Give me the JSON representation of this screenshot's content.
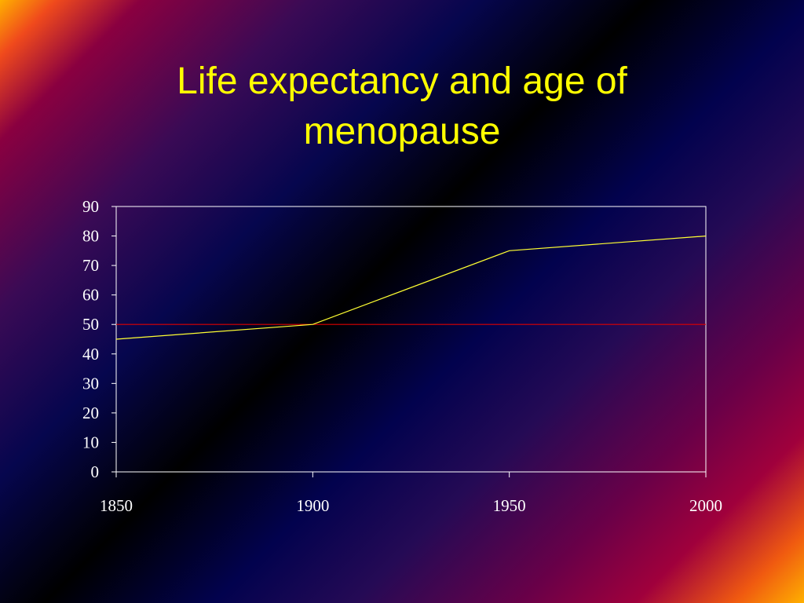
{
  "slide": {
    "title_line1": "Life expectancy and age of",
    "title_line2": "menopause"
  },
  "colors": {
    "title": "#ffff00",
    "axis": "#ffffff",
    "life_expectancy_line": "#ffff33",
    "menopause_line": "#dd0000"
  },
  "chart_data": {
    "type": "line",
    "title": "Life expectancy and age of menopause",
    "xlabel": "",
    "ylabel": "",
    "x": [
      1850,
      1900,
      1950,
      2000
    ],
    "xlim": [
      1850,
      2000
    ],
    "ylim": [
      0,
      90
    ],
    "y_ticks": [
      0,
      10,
      20,
      30,
      40,
      50,
      60,
      70,
      80,
      90
    ],
    "x_ticks": [
      1850,
      1900,
      1950,
      2000
    ],
    "grid": false,
    "legend": "none",
    "series": [
      {
        "values": [
          45,
          50,
          75,
          80
        ],
        "color": "#ffff33"
      },
      {
        "values": [
          50,
          50,
          50,
          50
        ],
        "color": "#dd0000"
      }
    ]
  }
}
